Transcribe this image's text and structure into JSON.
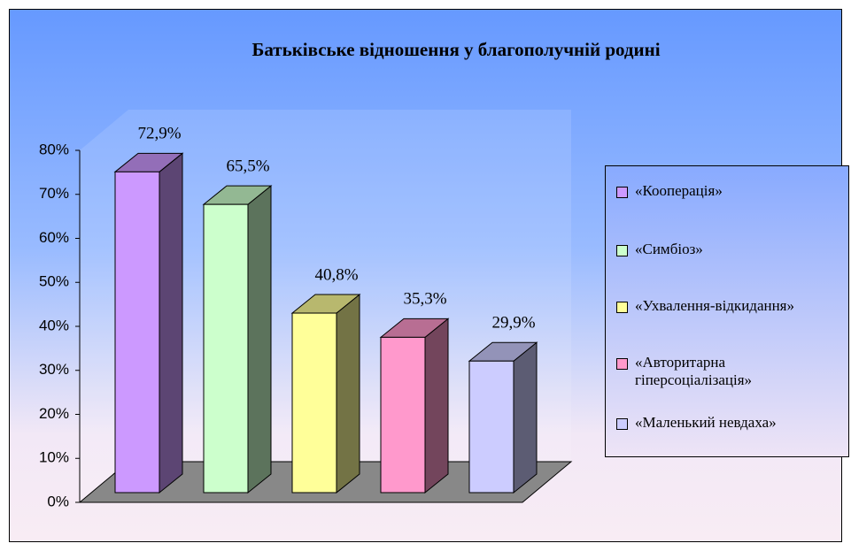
{
  "chart_data": {
    "type": "bar3d",
    "title": "Батьківське відношення у благополучній родині",
    "categories": [
      "«Кооперація»",
      "«Симбіоз»",
      "«Ухвалення-відкидання»",
      "«Авторитарна гіперсоціалізація»",
      "«Маленький невдаха»"
    ],
    "values": [
      72.9,
      65.5,
      40.8,
      35.3,
      29.9
    ],
    "value_labels": [
      "72,9%",
      "65,5%",
      "40,8%",
      "35,3%",
      "29,9%"
    ],
    "colors": [
      "#cc99ff",
      "#ccffcc",
      "#ffff99",
      "#ff99cc",
      "#ccccff"
    ],
    "ylim": [
      0,
      80
    ],
    "yticks": [
      {
        "value": 0,
        "label": "0%"
      },
      {
        "value": 10,
        "label": "10%"
      },
      {
        "value": 20,
        "label": "20%"
      },
      {
        "value": 30,
        "label": "30%"
      },
      {
        "value": 40,
        "label": "40%"
      },
      {
        "value": 50,
        "label": "50%"
      },
      {
        "value": 60,
        "label": "60%"
      },
      {
        "value": 70,
        "label": "70%"
      },
      {
        "value": 80,
        "label": "80%"
      }
    ],
    "legend": "right"
  }
}
